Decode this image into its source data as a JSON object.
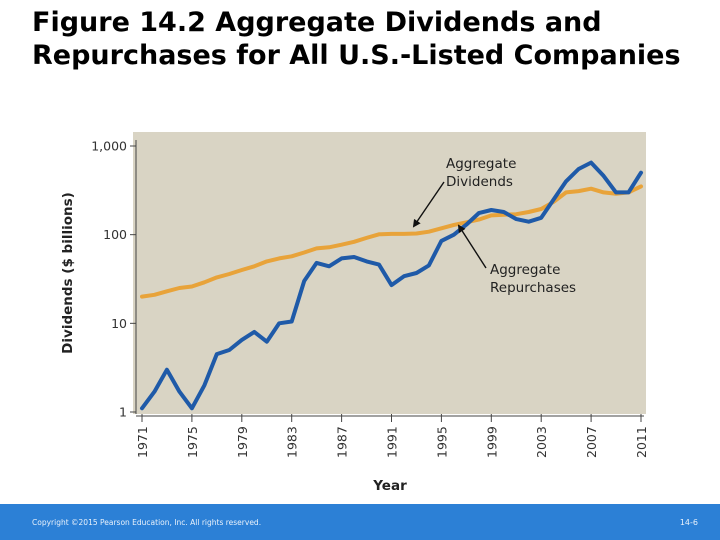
{
  "slide": {
    "title": "Figure 14.2 Aggregate Dividends and Repurchases for All U.S.-Listed Companies",
    "footer_copyright": "Copyright ©2015 Pearson Education, Inc. All rights reserved.",
    "page_number": "14-6"
  },
  "colors": {
    "plot_bg": "#d9d4c4",
    "dividends": "#e8a33a",
    "repurchases": "#1f5aa8",
    "footer": "#2c80d6"
  },
  "chart_data": {
    "type": "line",
    "y_scale": "log",
    "ylabel": "Dividends ($ billions)",
    "xlabel": "Year",
    "xlim": [
      1971,
      2011
    ],
    "ylim": [
      1,
      1000
    ],
    "x_ticks": [
      "1971",
      "1975",
      "1979",
      "1983",
      "1987",
      "1991",
      "1995",
      "1999",
      "2003",
      "2007",
      "2011"
    ],
    "y_ticks": [
      {
        "value": 1,
        "label": "1"
      },
      {
        "value": 10,
        "label": "10"
      },
      {
        "value": 100,
        "label": "100"
      },
      {
        "value": 1000,
        "label": "1,000"
      }
    ],
    "series": [
      {
        "name": "Aggregate Dividends",
        "annotation": [
          "Aggregate",
          "Dividends"
        ],
        "x": [
          1971,
          1972,
          1973,
          1974,
          1975,
          1976,
          1977,
          1978,
          1979,
          1980,
          1981,
          1982,
          1983,
          1984,
          1985,
          1986,
          1987,
          1988,
          1989,
          1990,
          1991,
          1992,
          1993,
          1994,
          1995,
          1996,
          1997,
          1998,
          1999,
          2000,
          2001,
          2002,
          2003,
          2004,
          2005,
          2006,
          2007,
          2008,
          2009,
          2010,
          2011
        ],
        "values": [
          20,
          21,
          23,
          25,
          26,
          29,
          33,
          36,
          40,
          44,
          50,
          54,
          57,
          63,
          70,
          72,
          77,
          83,
          92,
          101,
          102,
          102,
          103,
          108,
          118,
          129,
          138,
          148,
          165,
          168,
          170,
          180,
          195,
          235,
          300,
          310,
          330,
          300,
          290,
          300,
          350
        ]
      },
      {
        "name": "Aggregate Repurchases",
        "annotation": [
          "Aggregate",
          "Repurchases"
        ],
        "x": [
          1971,
          1972,
          1973,
          1974,
          1975,
          1976,
          1977,
          1978,
          1979,
          1980,
          1981,
          1982,
          1983,
          1984,
          1985,
          1986,
          1987,
          1988,
          1989,
          1990,
          1991,
          1992,
          1993,
          1994,
          1995,
          1996,
          1997,
          1998,
          1999,
          2000,
          2001,
          2002,
          2003,
          2004,
          2005,
          2006,
          2007,
          2008,
          2009,
          2010,
          2011
        ],
        "values": [
          1.1,
          1.7,
          3.0,
          1.7,
          1.1,
          2.0,
          4.5,
          5.0,
          6.5,
          8.0,
          6.2,
          10.0,
          10.5,
          30,
          48,
          44,
          54,
          56,
          50,
          46,
          27,
          34,
          37,
          45,
          85,
          100,
          130,
          175,
          190,
          180,
          150,
          140,
          155,
          250,
          400,
          550,
          650,
          460,
          300,
          300,
          500
        ]
      }
    ]
  }
}
